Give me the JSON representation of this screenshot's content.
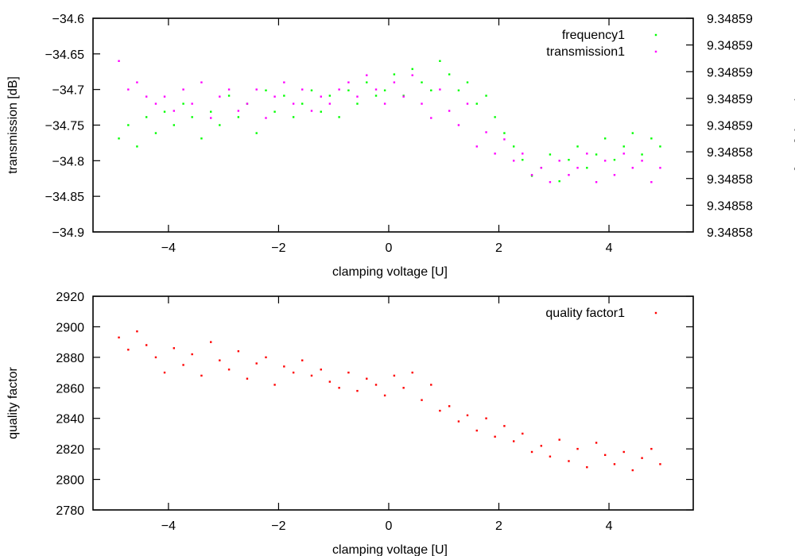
{
  "chart_data": [
    {
      "type": "scatter",
      "title": "",
      "xlabel": "clamping voltage [U]",
      "ylabel": "transmission [dB]",
      "y2label": "frequency [GHz]",
      "xlim": [
        -5.37,
        5.53
      ],
      "ylim": [
        -34.9,
        -34.6
      ],
      "y2lim": [
        9.348581,
        9.348589
      ],
      "xticks": [
        -4,
        -2,
        0,
        2,
        4
      ],
      "xtick_labels": [
        "−4",
        "−2",
        "0",
        "2",
        "4"
      ],
      "yticks": [
        -34.9,
        -34.85,
        -34.8,
        -34.75,
        -34.7,
        -34.65,
        -34.6
      ],
      "ytick_labels": [
        "−34.9",
        "−34.85",
        "−34.8",
        "−34.75",
        "−34.7",
        "−34.65",
        "−34.6"
      ],
      "y2ticks": [
        9.348581,
        9.348582,
        9.348583,
        9.348584,
        9.348585,
        9.348586,
        9.348587,
        9.348588,
        9.348589
      ],
      "y2tick_labels": [
        "9.34858",
        "9.34858",
        "9.34858",
        "9.34858",
        "9.34859",
        "9.34859",
        "9.34859",
        "9.34859",
        "9.34859"
      ],
      "grid": false,
      "legend_position": "top-right",
      "x": [
        -4.9,
        -4.73,
        -4.57,
        -4.4,
        -4.23,
        -4.07,
        -3.9,
        -3.73,
        -3.57,
        -3.4,
        -3.23,
        -3.07,
        -2.9,
        -2.73,
        -2.57,
        -2.4,
        -2.23,
        -2.07,
        -1.9,
        -1.73,
        -1.57,
        -1.4,
        -1.23,
        -1.07,
        -0.9,
        -0.73,
        -0.57,
        -0.4,
        -0.23,
        -0.07,
        0.1,
        0.27,
        0.43,
        0.6,
        0.77,
        0.93,
        1.1,
        1.27,
        1.43,
        1.6,
        1.77,
        1.93,
        2.1,
        2.27,
        2.43,
        2.6,
        2.77,
        2.93,
        3.1,
        3.27,
        3.43,
        3.6,
        3.77,
        3.93,
        4.1,
        4.27,
        4.43,
        4.6,
        4.77,
        4.93
      ],
      "series": [
        {
          "name": "frequency1",
          "axis": "y2",
          "color": "#00ff00",
          "values": [
            9.3485845,
            9.348585,
            9.3485842,
            9.3485853,
            9.3485847,
            9.3485855,
            9.348585,
            9.3485858,
            9.3485853,
            9.3485845,
            9.3485855,
            9.348585,
            9.3485861,
            9.3485853,
            9.3485858,
            9.3485847,
            9.3485863,
            9.3485855,
            9.3485861,
            9.3485853,
            9.3485858,
            9.3485863,
            9.3485855,
            9.3485861,
            9.3485853,
            9.3485863,
            9.3485858,
            9.3485866,
            9.3485861,
            9.3485863,
            9.3485869,
            9.3485861,
            9.3485871,
            9.3485866,
            9.3485863,
            9.3485874,
            9.3485869,
            9.3485863,
            9.3485866,
            9.3485858,
            9.3485861,
            9.3485853,
            9.3485847,
            9.3485842,
            9.3485837,
            9.3485831,
            9.3485834,
            9.3485839,
            9.3485829,
            9.3485837,
            9.3485842,
            9.3485834,
            9.3485839,
            9.3485845,
            9.3485837,
            9.3485842,
            9.3485847,
            9.3485839,
            9.3485845,
            9.3485842
          ]
        },
        {
          "name": "transmission1",
          "axis": "y",
          "color": "#ff00ff",
          "values": [
            -34.66,
            -34.7,
            -34.69,
            -34.71,
            -34.72,
            -34.71,
            -34.73,
            -34.7,
            -34.72,
            -34.69,
            -34.74,
            -34.71,
            -34.7,
            -34.73,
            -34.72,
            -34.7,
            -34.74,
            -34.71,
            -34.69,
            -34.72,
            -34.7,
            -34.73,
            -34.71,
            -34.72,
            -34.7,
            -34.69,
            -34.71,
            -34.68,
            -34.7,
            -34.72,
            -34.69,
            -34.71,
            -34.68,
            -34.72,
            -34.74,
            -34.7,
            -34.73,
            -34.75,
            -34.72,
            -34.78,
            -34.76,
            -34.79,
            -34.77,
            -34.8,
            -34.79,
            -34.82,
            -34.81,
            -34.83,
            -34.8,
            -34.82,
            -34.81,
            -34.79,
            -34.83,
            -34.8,
            -34.82,
            -34.79,
            -34.81,
            -34.8,
            -34.83,
            -34.81
          ]
        }
      ]
    },
    {
      "type": "scatter",
      "title": "",
      "xlabel": "clamping voltage [U]",
      "ylabel": "quality factor",
      "xlim": [
        -5.37,
        5.53
      ],
      "ylim": [
        2780,
        2920
      ],
      "xticks": [
        -4,
        -2,
        0,
        2,
        4
      ],
      "xtick_labels": [
        "−4",
        "−2",
        "0",
        "2",
        "4"
      ],
      "yticks": [
        2780,
        2800,
        2820,
        2840,
        2860,
        2880,
        2900,
        2920
      ],
      "ytick_labels": [
        "2780",
        "2800",
        "2820",
        "2840",
        "2860",
        "2880",
        "2900",
        "2920"
      ],
      "grid": false,
      "legend_position": "top-right",
      "x": [
        -4.9,
        -4.73,
        -4.57,
        -4.4,
        -4.23,
        -4.07,
        -3.9,
        -3.73,
        -3.57,
        -3.4,
        -3.23,
        -3.07,
        -2.9,
        -2.73,
        -2.57,
        -2.4,
        -2.23,
        -2.07,
        -1.9,
        -1.73,
        -1.57,
        -1.4,
        -1.23,
        -1.07,
        -0.9,
        -0.73,
        -0.57,
        -0.4,
        -0.23,
        -0.07,
        0.1,
        0.27,
        0.43,
        0.6,
        0.77,
        0.93,
        1.1,
        1.27,
        1.43,
        1.6,
        1.77,
        1.93,
        2.1,
        2.27,
        2.43,
        2.6,
        2.77,
        2.93,
        3.1,
        3.27,
        3.43,
        3.6,
        3.77,
        3.93,
        4.1,
        4.27,
        4.43,
        4.6,
        4.77,
        4.93
      ],
      "series": [
        {
          "name": "quality factor1",
          "axis": "y",
          "color": "#ff0000",
          "values": [
            2893,
            2885,
            2897,
            2888,
            2880,
            2870,
            2886,
            2875,
            2882,
            2868,
            2890,
            2878,
            2872,
            2884,
            2866,
            2876,
            2880,
            2862,
            2874,
            2870,
            2878,
            2868,
            2872,
            2864,
            2860,
            2870,
            2858,
            2866,
            2862,
            2855,
            2868,
            2860,
            2870,
            2852,
            2862,
            2845,
            2848,
            2838,
            2842,
            2832,
            2840,
            2828,
            2835,
            2825,
            2830,
            2818,
            2822,
            2815,
            2826,
            2812,
            2820,
            2808,
            2824,
            2816,
            2810,
            2818,
            2806,
            2814,
            2820,
            2810
          ]
        }
      ]
    }
  ]
}
